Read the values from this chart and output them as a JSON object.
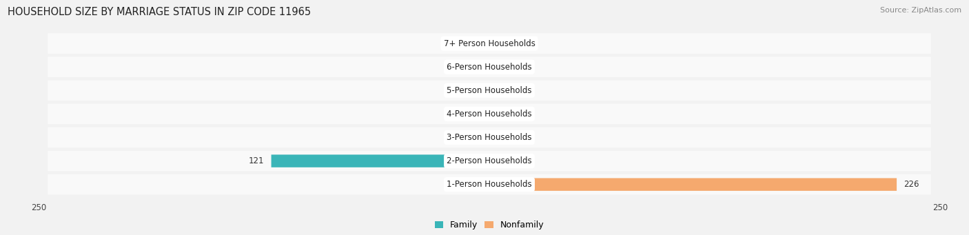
{
  "title": "HOUSEHOLD SIZE BY MARRIAGE STATUS IN ZIP CODE 11965",
  "source": "Source: ZipAtlas.com",
  "categories": [
    "7+ Person Households",
    "6-Person Households",
    "5-Person Households",
    "4-Person Households",
    "3-Person Households",
    "2-Person Households",
    "1-Person Households"
  ],
  "family_values": [
    0,
    0,
    0,
    0,
    0,
    121,
    0
  ],
  "nonfamily_values": [
    0,
    0,
    0,
    0,
    0,
    0,
    226
  ],
  "family_color": "#3ab5b8",
  "nonfamily_color": "#f5a96e",
  "family_stub_color": "#87cdd0",
  "nonfamily_stub_color": "#f5c9a5",
  "xlim": 250,
  "bar_height": 0.52,
  "background_color": "#f2f2f2",
  "row_bg_color": "#ffffff",
  "label_fontsize": 8.5,
  "title_fontsize": 10.5,
  "source_fontsize": 8,
  "legend_fontsize": 9,
  "value_fontsize": 8.5
}
